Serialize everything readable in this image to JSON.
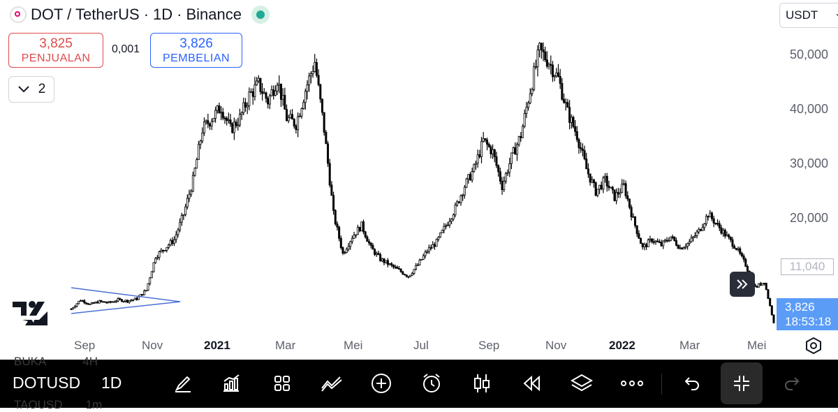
{
  "header": {
    "symbol": "DOT / TetherUS",
    "interval": "1D",
    "exchange": "Binance",
    "separator": "·"
  },
  "trade": {
    "sell_price": "3,825",
    "sell_label": "PENJUALAN",
    "spread": "0,001",
    "buy_price": "3,826",
    "buy_label": "PEMBELIAN"
  },
  "indicators": {
    "count": "2"
  },
  "currency": {
    "selected": "USDT"
  },
  "price_axis": {
    "labels": [
      "50,000",
      "40,000",
      "30,000",
      "20,000",
      "11,040"
    ],
    "current_price": "3,826",
    "countdown": "18:53:18",
    "last_label": "11,040"
  },
  "time_axis": {
    "labels": [
      {
        "text": "Sep",
        "bold": false
      },
      {
        "text": "Nov",
        "bold": false
      },
      {
        "text": "2021",
        "bold": true
      },
      {
        "text": "Mar",
        "bold": false
      },
      {
        "text": "Mei",
        "bold": false
      },
      {
        "text": "Jul",
        "bold": false
      },
      {
        "text": "Sep",
        "bold": false
      },
      {
        "text": "Nov",
        "bold": false
      },
      {
        "text": "2022",
        "bold": true
      },
      {
        "text": "Mar",
        "bold": false
      },
      {
        "text": "Mei",
        "bold": false
      }
    ]
  },
  "toolbar": {
    "symbol": "DOTUSD",
    "interval": "1D",
    "behind_text_top": "BUKA",
    "behind_value_top": "4H",
    "behind_text_bottom": "TAOUSD",
    "behind_value_bottom": "1m",
    "icons": [
      "draw-icon",
      "indicators-icon",
      "layouts-icon",
      "compare-icon",
      "add-icon",
      "alert-icon",
      "candles-icon",
      "replay-icon",
      "layers-icon",
      "more-icon",
      "undo-icon",
      "collapse-icon",
      "redo-icon"
    ]
  },
  "colors": {
    "sell": "#e04b4b",
    "buy": "#2962ff",
    "price_label_bg": "#5b9cf6",
    "trend_lines": "#4a6fd6",
    "status": "#22ab94"
  },
  "chart_data": {
    "type": "candlestick",
    "ylim": [
      5000,
      56000
    ],
    "ticks": [
      11040,
      20000,
      30000,
      40000,
      50000
    ],
    "series": [
      {
        "values": [
          6200,
          7800,
          7000,
          7500,
          7300,
          7800,
          7600,
          8000,
          9500,
          15500,
          17000,
          18500,
          23000,
          29000,
          38000,
          40000,
          42000,
          38000,
          40000,
          44000,
          46000,
          43000,
          47000,
          40000,
          39000,
          45000,
          50000,
          38000,
          23000,
          16000,
          19000,
          21000,
          17000,
          15000,
          14000,
          13000,
          12000,
          14000,
          16500,
          18000,
          21000,
          24000,
          28000,
          31000,
          36000,
          34000,
          28000,
          33000,
          37000,
          45000,
          52000,
          50000,
          47000,
          41000,
          37000,
          31000,
          27000,
          29000,
          26000,
          28000,
          22000,
          17000,
          18500,
          17500,
          19000,
          17000,
          18000,
          20000,
          23000,
          21000,
          19000,
          17000,
          14000,
          10000,
          11040,
          3826
        ]
      }
    ]
  }
}
